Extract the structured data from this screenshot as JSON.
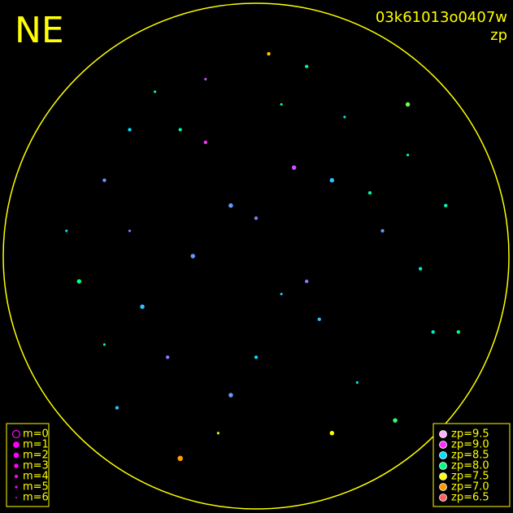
{
  "chart_data": {
    "type": "scatter",
    "title": "NE",
    "subtitle": "03k61013o0407w",
    "color_label": "zp",
    "xlim": [
      -1,
      1
    ],
    "ylim": [
      -1,
      1
    ],
    "frame_color": "#ffff00",
    "size_legend": [
      {
        "value": 0,
        "label": "m=0"
      },
      {
        "value": 1,
        "label": "m=1"
      },
      {
        "value": 2,
        "label": "m=2"
      },
      {
        "value": 3,
        "label": "m=3"
      },
      {
        "value": 4,
        "label": "m=4"
      },
      {
        "value": 5,
        "label": "m=5"
      },
      {
        "value": 6,
        "label": "m=6"
      }
    ],
    "size_legend_color": "#ff00ff",
    "color_legend": [
      {
        "value": 9.5,
        "label": "zp=9.5",
        "color": "#ffb0ff"
      },
      {
        "value": 9.0,
        "label": "zp=9.0",
        "color": "#ff30ff"
      },
      {
        "value": 8.5,
        "label": "zp=8.5",
        "color": "#00e0ff"
      },
      {
        "value": 8.0,
        "label": "zp=8.0",
        "color": "#00ff80"
      },
      {
        "value": 7.5,
        "label": "zp=7.5",
        "color": "#ffff00"
      },
      {
        "value": 7.0,
        "label": "zp=7.0",
        "color": "#ff9900"
      },
      {
        "value": 6.5,
        "label": "zp=6.5",
        "color": "#ff6060"
      }
    ],
    "points": {
      "x": [
        -0.6,
        -0.5,
        -0.45,
        -0.3,
        -0.2,
        -0.1,
        0,
        0.1,
        0.2,
        0.3,
        0.4,
        0.5,
        0.6,
        0.7,
        -0.7,
        -0.55,
        -0.35,
        -0.25,
        -0.15,
        0.05,
        0.15,
        0.25,
        0.35,
        0.45,
        0.55,
        0.65,
        -0.4,
        -0.3,
        -0.2,
        -0.1,
        0,
        0.1,
        0.2,
        0.3,
        -0.5,
        -0.6,
        0.6,
        0.75,
        -0.75,
        0.8
      ],
      "y": [
        0.3,
        0.1,
        -0.2,
        0.5,
        0.7,
        0.2,
        -0.4,
        0.6,
        -0.1,
        0.3,
        -0.5,
        0.1,
        0.4,
        -0.3,
        -0.1,
        -0.6,
        -0.4,
        0,
        -0.7,
        0.8,
        0.35,
        -0.25,
        0.55,
        0.25,
        -0.65,
        -0.05,
        0.65,
        -0.8,
        0.45,
        -0.55,
        0.15,
        -0.15,
        0.75,
        -0.7,
        0.5,
        -0.35,
        0.6,
        0.2,
        0.1,
        -0.3
      ],
      "zp": [
        8.7,
        8.8,
        8.6,
        8.2,
        8.9,
        8.7,
        8.5,
        8.0,
        8.8,
        8.6,
        8.4,
        8.7,
        8.1,
        8.3,
        8.0,
        8.6,
        8.8,
        8.7,
        7.6,
        7.2,
        8.9,
        8.6,
        8.4,
        8.2,
        7.9,
        8.3,
        8.0,
        7.0,
        9.0,
        8.7,
        8.8,
        8.6,
        8.1,
        7.5,
        8.5,
        8.3,
        7.8,
        8.2,
        8.4,
        8.0
      ],
      "m": [
        4,
        5,
        3,
        4,
        5,
        3,
        4,
        5,
        4,
        3,
        5,
        4,
        5,
        4,
        3,
        4,
        4,
        3,
        5,
        4,
        3,
        4,
        5,
        4,
        3,
        4,
        5,
        2,
        4,
        3,
        4,
        5,
        4,
        3,
        4,
        5,
        3,
        4,
        5,
        4
      ]
    }
  }
}
